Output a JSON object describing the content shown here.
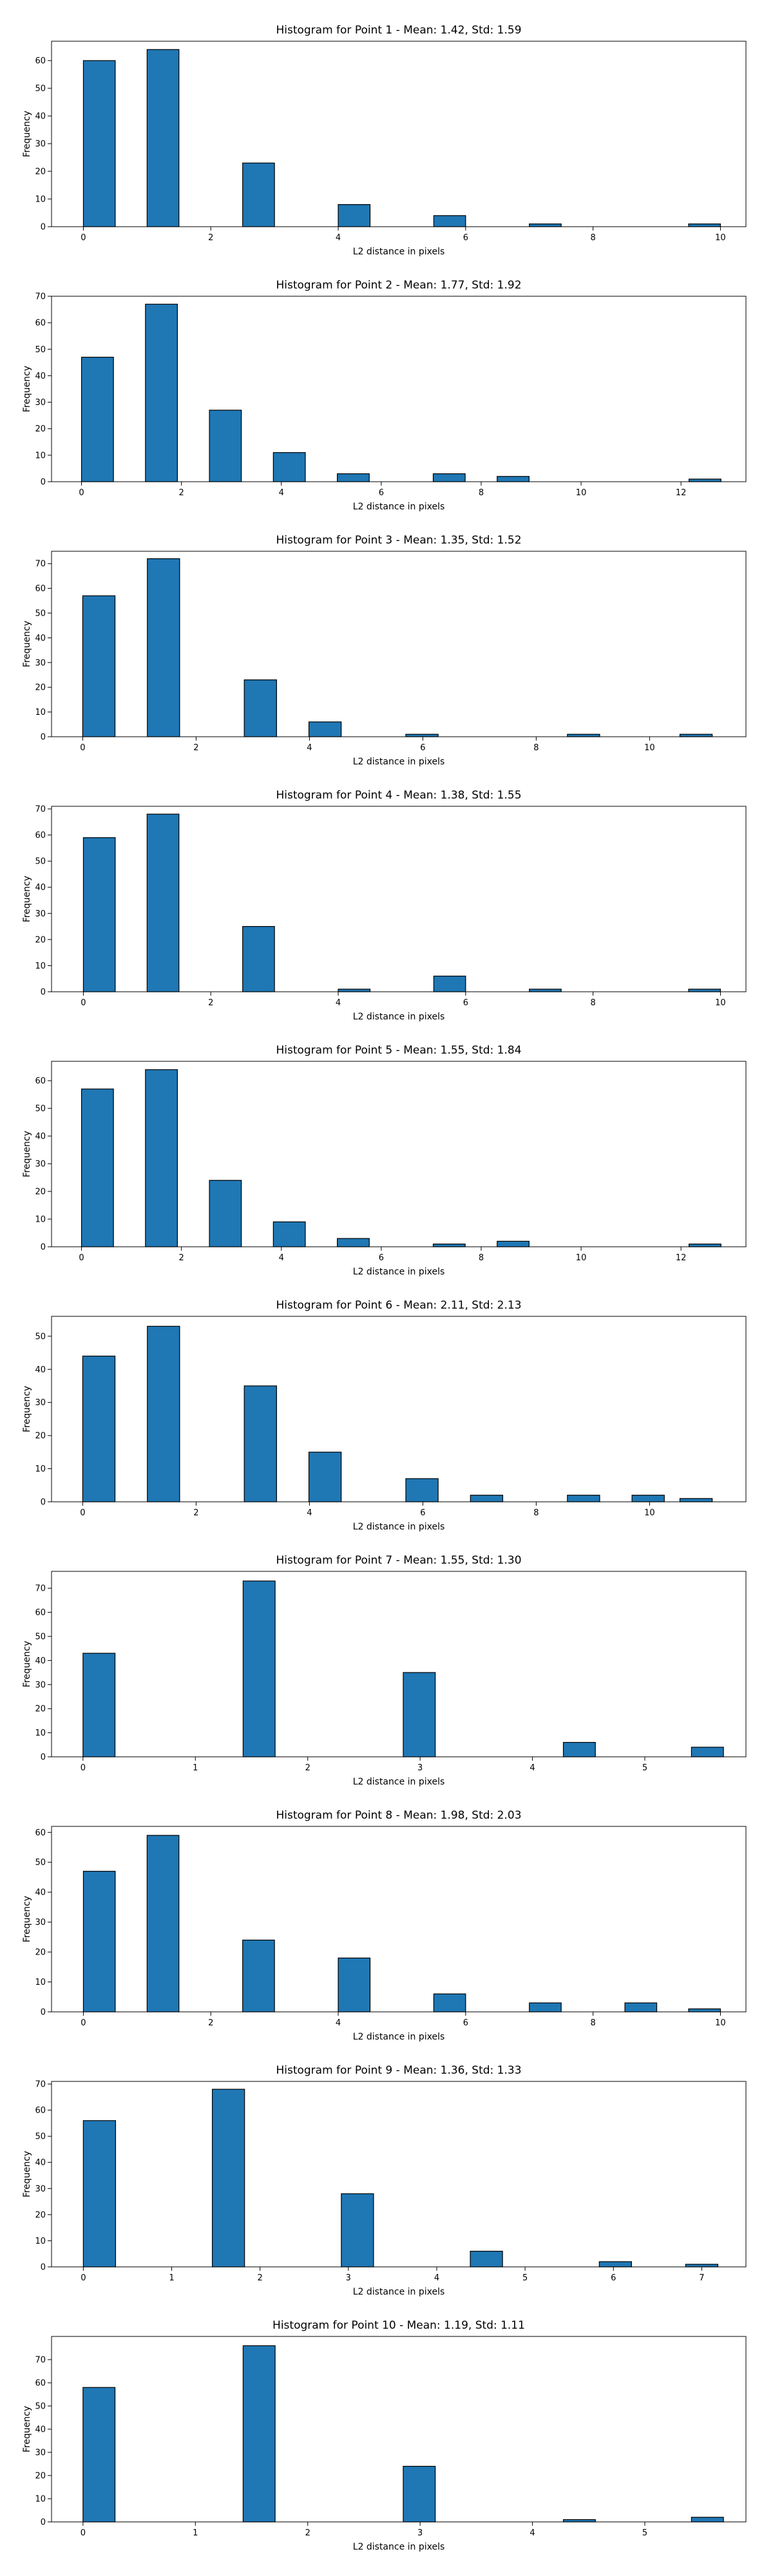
{
  "colors": {
    "bar_fill": "#1f77b4",
    "bar_edge": "#000000",
    "axes": "#000000",
    "background": "#ffffff"
  },
  "chart_data": [
    {
      "type": "bar",
      "title": "Histogram for Point 1 - Mean: 1.42, Std: 1.59",
      "xlabel": "L2 distance in pixels",
      "ylabel": "Frequency",
      "xlim": [
        -0.5,
        10.4
      ],
      "ylim": [
        0,
        67
      ],
      "xticks": [
        0,
        2,
        4,
        6,
        8,
        10
      ],
      "yticks": [
        0,
        10,
        20,
        30,
        40,
        50,
        60
      ],
      "bar_width": 0.5,
      "x": [
        0.25,
        1.25,
        2.75,
        4.25,
        5.75,
        7.25,
        9.75
      ],
      "values": [
        60,
        64,
        23,
        8,
        4,
        1,
        1
      ],
      "grid": false
    },
    {
      "type": "bar",
      "title": "Histogram for Point 2 - Mean: 1.77, Std: 1.92",
      "xlabel": "L2 distance in pixels",
      "ylabel": "Frequency",
      "xlim": [
        -0.6,
        13.3
      ],
      "ylim": [
        0,
        70
      ],
      "xticks": [
        0,
        2,
        4,
        6,
        8,
        10,
        12
      ],
      "yticks": [
        0,
        10,
        20,
        30,
        40,
        50,
        60,
        70
      ],
      "bar_width": 0.64,
      "x": [
        0.32,
        1.6,
        2.88,
        4.16,
        5.44,
        7.36,
        8.64,
        12.48
      ],
      "values": [
        47,
        67,
        27,
        11,
        3,
        3,
        2,
        1
      ],
      "grid": false
    },
    {
      "type": "bar",
      "title": "Histogram for Point 3 - Mean: 1.35, Std: 1.52",
      "xlabel": "L2 distance in pixels",
      "ylabel": "Frequency",
      "xlim": [
        -0.55,
        11.7
      ],
      "ylim": [
        0,
        75
      ],
      "xticks": [
        0,
        2,
        4,
        6,
        8,
        10
      ],
      "yticks": [
        0,
        10,
        20,
        30,
        40,
        50,
        60,
        70
      ],
      "bar_width": 0.57,
      "x": [
        0.285,
        1.425,
        3.135,
        4.275,
        5.985,
        8.835,
        10.82
      ],
      "values": [
        57,
        72,
        23,
        6,
        1,
        1,
        1
      ],
      "grid": false
    },
    {
      "type": "bar",
      "title": "Histogram for Point 4 - Mean: 1.38, Std: 1.55",
      "xlabel": "L2 distance in pixels",
      "ylabel": "Frequency",
      "xlim": [
        -0.5,
        10.4
      ],
      "ylim": [
        0,
        71
      ],
      "xticks": [
        0,
        2,
        4,
        6,
        8,
        10
      ],
      "yticks": [
        0,
        10,
        20,
        30,
        40,
        50,
        60,
        70
      ],
      "bar_width": 0.5,
      "x": [
        0.25,
        1.25,
        2.75,
        4.25,
        5.75,
        7.25,
        9.75
      ],
      "values": [
        59,
        68,
        25,
        1,
        6,
        1,
        1
      ],
      "grid": false
    },
    {
      "type": "bar",
      "title": "Histogram for Point 5 - Mean: 1.55, Std: 1.84",
      "xlabel": "L2 distance in pixels",
      "ylabel": "Frequency",
      "xlim": [
        -0.6,
        13.3
      ],
      "ylim": [
        0,
        67
      ],
      "xticks": [
        0,
        2,
        4,
        6,
        8,
        10,
        12
      ],
      "yticks": [
        0,
        10,
        20,
        30,
        40,
        50,
        60
      ],
      "bar_width": 0.64,
      "x": [
        0.32,
        1.6,
        2.88,
        4.16,
        5.44,
        7.36,
        8.64,
        12.48
      ],
      "values": [
        57,
        64,
        24,
        9,
        3,
        1,
        2,
        1
      ],
      "grid": false
    },
    {
      "type": "bar",
      "title": "Histogram for Point 6 - Mean: 2.11, Std: 2.13",
      "xlabel": "L2 distance in pixels",
      "ylabel": "Frequency",
      "xlim": [
        -0.55,
        11.7
      ],
      "ylim": [
        0,
        56
      ],
      "xticks": [
        0,
        2,
        4,
        6,
        8,
        10
      ],
      "yticks": [
        0,
        10,
        20,
        30,
        40,
        50
      ],
      "bar_width": 0.57,
      "x": [
        0.285,
        1.425,
        3.135,
        4.275,
        5.985,
        7.125,
        8.835,
        9.975,
        10.82
      ],
      "values": [
        44,
        53,
        35,
        15,
        7,
        2,
        2,
        2,
        1
      ],
      "grid": false
    },
    {
      "type": "bar",
      "title": "Histogram for Point 7 - Mean: 1.55, Std: 1.30",
      "xlabel": "L2 distance in pixels",
      "ylabel": "Frequency",
      "xlim": [
        -0.28,
        5.9
      ],
      "ylim": [
        0,
        77
      ],
      "xticks": [
        0,
        1,
        2,
        3,
        4,
        5
      ],
      "yticks": [
        0,
        10,
        20,
        30,
        40,
        50,
        60,
        70
      ],
      "bar_width": 0.285,
      "x": [
        0.1425,
        1.5675,
        2.9925,
        4.4175,
        5.5575
      ],
      "values": [
        43,
        73,
        35,
        6,
        4
      ],
      "grid": false
    },
    {
      "type": "bar",
      "title": "Histogram for Point 8 - Mean: 1.98, Std: 2.03",
      "xlabel": "L2 distance in pixels",
      "ylabel": "Frequency",
      "xlim": [
        -0.5,
        10.4
      ],
      "ylim": [
        0,
        62
      ],
      "xticks": [
        0,
        2,
        4,
        6,
        8,
        10
      ],
      "yticks": [
        0,
        10,
        20,
        30,
        40,
        50,
        60
      ],
      "bar_width": 0.5,
      "x": [
        0.25,
        1.25,
        2.75,
        4.25,
        5.75,
        7.25,
        8.75,
        9.75
      ],
      "values": [
        47,
        59,
        24,
        18,
        6,
        3,
        3,
        1
      ],
      "grid": false
    },
    {
      "type": "bar",
      "title": "Histogram for Point 9 - Mean: 1.36, Std: 1.33",
      "xlabel": "L2 distance in pixels",
      "ylabel": "Frequency",
      "xlim": [
        -0.36,
        7.5
      ],
      "ylim": [
        0,
        71
      ],
      "xticks": [
        0,
        1,
        2,
        3,
        4,
        5,
        6,
        7
      ],
      "yticks": [
        0,
        10,
        20,
        30,
        40,
        50,
        60,
        70
      ],
      "bar_width": 0.365,
      "x": [
        0.1825,
        1.6425,
        3.1025,
        4.5625,
        6.0225,
        7.0
      ],
      "values": [
        56,
        68,
        28,
        6,
        2,
        1
      ],
      "grid": false
    },
    {
      "type": "bar",
      "title": "Histogram for Point 10 - Mean: 1.19, Std: 1.11",
      "xlabel": "L2 distance in pixels",
      "ylabel": "Frequency",
      "xlim": [
        -0.28,
        5.9
      ],
      "ylim": [
        0,
        80
      ],
      "xticks": [
        0,
        1,
        2,
        3,
        4,
        5
      ],
      "yticks": [
        0,
        10,
        20,
        30,
        40,
        50,
        60,
        70
      ],
      "bar_width": 0.285,
      "x": [
        0.1425,
        1.5675,
        2.9925,
        4.4175,
        5.5575
      ],
      "values": [
        58,
        76,
        24,
        1,
        2
      ],
      "grid": false
    }
  ]
}
